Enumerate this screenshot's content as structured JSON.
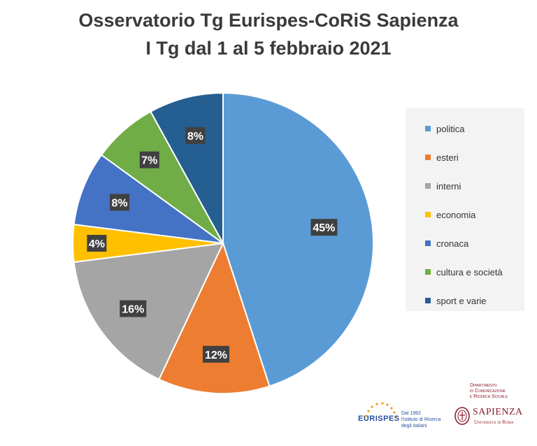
{
  "chart_data": {
    "type": "pie",
    "title": "Osservatorio Tg Eurispes-CoRiS Sapienza",
    "subtitle": "I Tg dal 1 al 5 febbraio 2021",
    "categories": [
      "politica",
      "esteri",
      "interni",
      "economia",
      "cronaca",
      "cultura e società",
      "sport e varie"
    ],
    "values": [
      45,
      12,
      16,
      4,
      8,
      7,
      8
    ],
    "labels": [
      "45%",
      "12%",
      "16%",
      "4%",
      "8%",
      "7%",
      "8%"
    ],
    "colors": [
      "#5b9bd5",
      "#ed7d31",
      "#a5a5a5",
      "#ffc000",
      "#4472c4",
      "#70ad47",
      "#255e91"
    ],
    "legend_position": "right"
  },
  "logos": {
    "eurispes": {
      "name": "EURISPES",
      "tagline": "Dal 1982\nl'Istituto di Ricerca\ndegli italiani"
    },
    "sapienza": {
      "department": "Dipartimento\ndi Comunicazione\ne Ricerca Sociale",
      "name": "SAPIENZA",
      "subtitle": "Università di Roma"
    }
  }
}
